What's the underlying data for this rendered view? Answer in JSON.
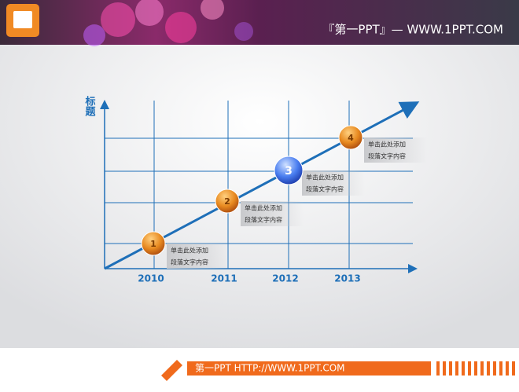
{
  "header": {
    "brand": "『第一PPT』— WWW.1PPT.COM"
  },
  "diagram": {
    "y_label": "标题",
    "years": [
      "2010",
      "2011",
      "2012",
      "2013"
    ],
    "milestones": [
      {
        "number": "1",
        "line1": "单击此处添加",
        "line2": "段落文字内容"
      },
      {
        "number": "2",
        "line1": "单击此处添加",
        "line2": "段落文字内容"
      },
      {
        "number": "3",
        "line1": "单击此处添加",
        "line2": "段落文字内容"
      },
      {
        "number": "4",
        "line1": "单击此处添加",
        "line2": "段落文字内容"
      }
    ]
  },
  "footer": {
    "text": "第一PPT HTTP://WWW.1PPT.COM"
  }
}
